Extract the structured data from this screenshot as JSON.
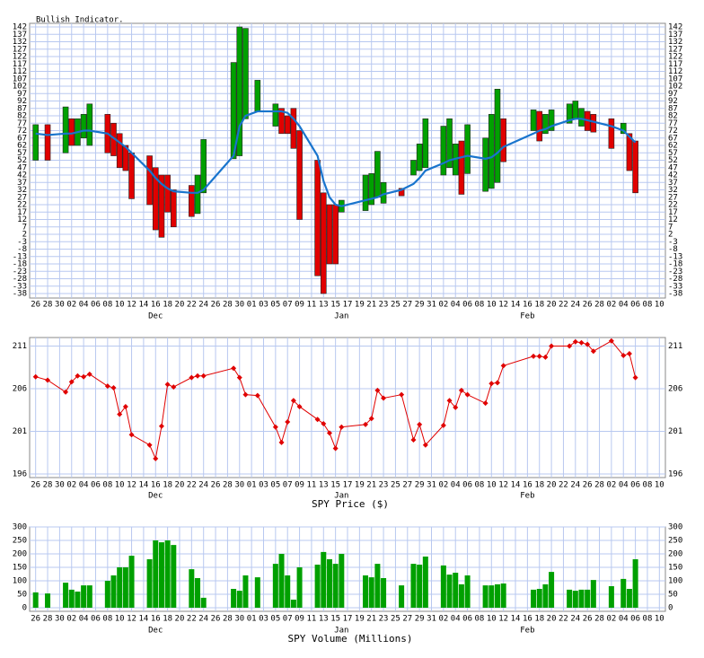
{
  "chart_data": [
    {
      "type": "range",
      "title": "Bullish Indicator.",
      "x": [
        0,
        2,
        5,
        6,
        7,
        8,
        9,
        12,
        13,
        14,
        15,
        16,
        19,
        20,
        21,
        22,
        23,
        26,
        27,
        28,
        33,
        34,
        35,
        37,
        40,
        41,
        42,
        43,
        44,
        47,
        48,
        49,
        50,
        51,
        55,
        56,
        57,
        58,
        61,
        63,
        64,
        65,
        68,
        69,
        70,
        71,
        72,
        75,
        76,
        77,
        78,
        83,
        84,
        85,
        86,
        89,
        90,
        91,
        92,
        93,
        96,
        98,
        99,
        100
      ],
      "open": [
        52,
        76,
        57,
        80,
        62,
        67,
        62,
        83,
        77,
        70,
        62,
        57,
        55,
        47,
        42,
        42,
        32,
        35,
        16,
        30,
        53,
        55,
        80,
        85,
        75,
        87,
        82,
        87,
        72,
        52,
        30,
        22,
        22,
        17,
        18,
        22,
        27,
        23,
        33,
        42,
        45,
        47,
        42,
        47,
        42,
        65,
        43,
        31,
        33,
        37,
        80,
        72,
        85,
        70,
        72,
        77,
        80,
        75,
        85,
        83,
        80,
        70,
        70,
        65
      ],
      "close": [
        76,
        52,
        88,
        62,
        80,
        83,
        90,
        57,
        55,
        47,
        45,
        26,
        22,
        5,
        0,
        17,
        7,
        14,
        42,
        66,
        118,
        142,
        141,
        106,
        90,
        70,
        70,
        60,
        12,
        -26,
        -38,
        -18,
        -18,
        25,
        42,
        43,
        58,
        37,
        28,
        52,
        63,
        80,
        75,
        80,
        63,
        29,
        76,
        67,
        83,
        100,
        51,
        86,
        65,
        83,
        86,
        90,
        92,
        87,
        72,
        71,
        60,
        77,
        45,
        30
      ],
      "up_color": "#00a000",
      "down_color": "#e00000",
      "line_color": "#1874cd",
      "line_values": [
        70,
        69,
        70,
        70,
        71,
        72,
        72,
        70,
        67,
        64,
        61,
        57,
        45,
        40,
        36,
        33,
        31,
        30,
        30,
        32,
        55,
        75,
        82,
        85,
        85,
        85,
        84,
        80,
        75,
        55,
        38,
        27,
        22,
        21,
        25,
        26,
        27,
        29,
        32,
        36,
        40,
        45,
        50,
        52,
        53,
        54,
        55,
        53,
        54,
        57,
        61,
        70,
        72,
        73,
        75,
        79,
        80,
        80,
        79,
        78,
        75,
        72,
        68,
        64
      ],
      "xlim": [
        -1,
        105
      ],
      "xticks": [
        {
          "value": 0,
          "label": "26"
        },
        {
          "value": 2,
          "label": "28"
        },
        {
          "value": 4,
          "label": "30"
        },
        {
          "value": 6,
          "label": "02"
        },
        {
          "value": 8,
          "label": "04"
        },
        {
          "value": 10,
          "label": "06"
        },
        {
          "value": 12,
          "label": "08"
        },
        {
          "value": 14,
          "label": "10"
        },
        {
          "value": 16,
          "label": "12"
        },
        {
          "value": 18,
          "label": "14"
        },
        {
          "value": 20,
          "label": "16"
        },
        {
          "value": 22,
          "label": "18"
        },
        {
          "value": 24,
          "label": "20"
        },
        {
          "value": 26,
          "label": "22"
        },
        {
          "value": 28,
          "label": "24"
        },
        {
          "value": 30,
          "label": "26"
        },
        {
          "value": 32,
          "label": "28"
        },
        {
          "value": 34,
          "label": "30"
        },
        {
          "value": 36,
          "label": "01"
        },
        {
          "value": 38,
          "label": "03"
        },
        {
          "value": 40,
          "label": "05"
        },
        {
          "value": 42,
          "label": "07"
        },
        {
          "value": 44,
          "label": "09"
        },
        {
          "value": 46,
          "label": "11"
        },
        {
          "value": 48,
          "label": "13"
        },
        {
          "value": 50,
          "label": "15"
        },
        {
          "value": 52,
          "label": "17"
        },
        {
          "value": 54,
          "label": "19"
        },
        {
          "value": 56,
          "label": "21"
        },
        {
          "value": 58,
          "label": "23"
        },
        {
          "value": 60,
          "label": "25"
        },
        {
          "value": 62,
          "label": "27"
        },
        {
          "value": 64,
          "label": "29"
        },
        {
          "value": 66,
          "label": "31"
        },
        {
          "value": 68,
          "label": "02"
        },
        {
          "value": 70,
          "label": "04"
        },
        {
          "value": 72,
          "label": "06"
        },
        {
          "value": 74,
          "label": "08"
        },
        {
          "value": 76,
          "label": "10"
        },
        {
          "value": 78,
          "label": "12"
        },
        {
          "value": 80,
          "label": "14"
        },
        {
          "value": 82,
          "label": "16"
        },
        {
          "value": 84,
          "label": "18"
        },
        {
          "value": 86,
          "label": "20"
        },
        {
          "value": 88,
          "label": "22"
        },
        {
          "value": 90,
          "label": "24"
        },
        {
          "value": 92,
          "label": "26"
        },
        {
          "value": 94,
          "label": "28"
        },
        {
          "value": 96,
          "label": "02"
        },
        {
          "value": 98,
          "label": "04"
        },
        {
          "value": 100,
          "label": "06"
        },
        {
          "value": 102,
          "label": "08"
        },
        {
          "value": 104,
          "label": "10"
        }
      ],
      "months": [
        {
          "value": 20,
          "label": "Dec"
        },
        {
          "value": 51,
          "label": "Jan"
        },
        {
          "value": 82,
          "label": "Feb"
        }
      ],
      "ylim": [
        -38,
        142
      ],
      "yticks": [
        -38,
        -33,
        -28,
        -23,
        -18,
        -13,
        -8,
        -3,
        2,
        7,
        12,
        17,
        22,
        27,
        32,
        37,
        42,
        47,
        52,
        57,
        62,
        67,
        72,
        77,
        82,
        87,
        92,
        97,
        102,
        107,
        112,
        117,
        122,
        127,
        132,
        137,
        142
      ],
      "grid": true
    },
    {
      "type": "line",
      "xlabel": "SPY Price ($)",
      "color": "#e00000",
      "x": [
        0,
        2,
        5,
        6,
        7,
        8,
        9,
        12,
        13,
        14,
        15,
        16,
        19,
        20,
        21,
        22,
        23,
        26,
        27,
        28,
        33,
        34,
        35,
        37,
        40,
        41,
        42,
        43,
        44,
        47,
        48,
        49,
        50,
        51,
        55,
        56,
        57,
        58,
        61,
        63,
        64,
        65,
        68,
        69,
        70,
        71,
        72,
        75,
        76,
        77,
        78,
        83,
        84,
        85,
        86,
        89,
        90,
        91,
        92,
        93,
        96,
        98,
        99,
        100
      ],
      "values": [
        207.4,
        207.0,
        205.6,
        206.8,
        207.5,
        207.4,
        207.7,
        206.3,
        206.1,
        203.0,
        203.9,
        200.6,
        199.4,
        197.8,
        201.6,
        206.5,
        206.2,
        207.3,
        207.5,
        207.5,
        208.4,
        207.3,
        205.3,
        205.2,
        201.5,
        199.7,
        202.1,
        204.6,
        203.9,
        202.4,
        201.9,
        200.8,
        199.0,
        201.5,
        201.8,
        202.5,
        205.8,
        204.9,
        205.3,
        200.0,
        201.8,
        199.4,
        201.7,
        204.6,
        203.8,
        205.8,
        205.3,
        204.3,
        206.6,
        206.7,
        208.7,
        209.8,
        209.8,
        209.7,
        211.0,
        211.0,
        211.5,
        211.4,
        211.2,
        210.4,
        211.6,
        209.9,
        210.1,
        207.3
      ],
      "xlim": [
        -1,
        105
      ],
      "xticks": [
        {
          "value": 0,
          "label": "26"
        },
        {
          "value": 2,
          "label": "28"
        },
        {
          "value": 4,
          "label": "30"
        },
        {
          "value": 6,
          "label": "02"
        },
        {
          "value": 8,
          "label": "04"
        },
        {
          "value": 10,
          "label": "06"
        },
        {
          "value": 12,
          "label": "08"
        },
        {
          "value": 14,
          "label": "10"
        },
        {
          "value": 16,
          "label": "12"
        },
        {
          "value": 18,
          "label": "14"
        },
        {
          "value": 20,
          "label": "16"
        },
        {
          "value": 22,
          "label": "18"
        },
        {
          "value": 24,
          "label": "20"
        },
        {
          "value": 26,
          "label": "22"
        },
        {
          "value": 28,
          "label": "24"
        },
        {
          "value": 30,
          "label": "26"
        },
        {
          "value": 32,
          "label": "28"
        },
        {
          "value": 34,
          "label": "30"
        },
        {
          "value": 36,
          "label": "01"
        },
        {
          "value": 38,
          "label": "03"
        },
        {
          "value": 40,
          "label": "05"
        },
        {
          "value": 42,
          "label": "07"
        },
        {
          "value": 44,
          "label": "09"
        },
        {
          "value": 46,
          "label": "11"
        },
        {
          "value": 48,
          "label": "13"
        },
        {
          "value": 50,
          "label": "15"
        },
        {
          "value": 52,
          "label": "17"
        },
        {
          "value": 54,
          "label": "19"
        },
        {
          "value": 56,
          "label": "21"
        },
        {
          "value": 58,
          "label": "23"
        },
        {
          "value": 60,
          "label": "25"
        },
        {
          "value": 62,
          "label": "27"
        },
        {
          "value": 64,
          "label": "29"
        },
        {
          "value": 66,
          "label": "31"
        },
        {
          "value": 68,
          "label": "02"
        },
        {
          "value": 70,
          "label": "04"
        },
        {
          "value": 72,
          "label": "06"
        },
        {
          "value": 74,
          "label": "08"
        },
        {
          "value": 76,
          "label": "10"
        },
        {
          "value": 78,
          "label": "12"
        },
        {
          "value": 80,
          "label": "14"
        },
        {
          "value": 82,
          "label": "16"
        },
        {
          "value": 84,
          "label": "18"
        },
        {
          "value": 86,
          "label": "20"
        },
        {
          "value": 88,
          "label": "22"
        },
        {
          "value": 90,
          "label": "24"
        },
        {
          "value": 92,
          "label": "26"
        },
        {
          "value": 94,
          "label": "28"
        },
        {
          "value": 96,
          "label": "02"
        },
        {
          "value": 98,
          "label": "04"
        },
        {
          "value": 100,
          "label": "06"
        },
        {
          "value": 102,
          "label": "08"
        },
        {
          "value": 104,
          "label": "10"
        }
      ],
      "months": [
        {
          "value": 20,
          "label": "Dec"
        },
        {
          "value": 51,
          "label": "Jan"
        },
        {
          "value": 82,
          "label": "Feb"
        }
      ],
      "ylim": [
        196,
        212
      ],
      "yticks": [
        196,
        201,
        206,
        211
      ],
      "grid": true
    },
    {
      "type": "bar",
      "xlabel": "SPY Volume (Millions)",
      "color": "#00a000",
      "x": [
        0,
        2,
        5,
        6,
        7,
        8,
        9,
        12,
        13,
        14,
        15,
        16,
        19,
        20,
        21,
        22,
        23,
        26,
        27,
        28,
        33,
        34,
        35,
        37,
        40,
        41,
        42,
        43,
        44,
        47,
        48,
        49,
        50,
        51,
        55,
        56,
        57,
        58,
        61,
        63,
        64,
        65,
        68,
        69,
        70,
        71,
        72,
        75,
        76,
        77,
        78,
        83,
        84,
        85,
        86,
        89,
        90,
        91,
        92,
        93,
        96,
        98,
        99,
        100
      ],
      "values": [
        57,
        53,
        93,
        67,
        60,
        83,
        83,
        100,
        120,
        150,
        150,
        193,
        180,
        250,
        243,
        250,
        233,
        143,
        110,
        37,
        70,
        63,
        120,
        113,
        163,
        200,
        120,
        30,
        150,
        160,
        207,
        180,
        163,
        200,
        120,
        113,
        163,
        110,
        83,
        163,
        160,
        190,
        157,
        123,
        130,
        87,
        120,
        83,
        83,
        87,
        90,
        67,
        70,
        87,
        133,
        67,
        63,
        67,
        67,
        103,
        80,
        107,
        70,
        180
      ],
      "xlim": [
        -1,
        105
      ],
      "xticks": [
        {
          "value": 0,
          "label": "26"
        },
        {
          "value": 2,
          "label": "28"
        },
        {
          "value": 4,
          "label": "30"
        },
        {
          "value": 6,
          "label": "02"
        },
        {
          "value": 8,
          "label": "04"
        },
        {
          "value": 10,
          "label": "06"
        },
        {
          "value": 12,
          "label": "08"
        },
        {
          "value": 14,
          "label": "10"
        },
        {
          "value": 16,
          "label": "12"
        },
        {
          "value": 18,
          "label": "14"
        },
        {
          "value": 20,
          "label": "16"
        },
        {
          "value": 22,
          "label": "18"
        },
        {
          "value": 24,
          "label": "20"
        },
        {
          "value": 26,
          "label": "22"
        },
        {
          "value": 28,
          "label": "24"
        },
        {
          "value": 30,
          "label": "26"
        },
        {
          "value": 32,
          "label": "28"
        },
        {
          "value": 34,
          "label": "30"
        },
        {
          "value": 36,
          "label": "01"
        },
        {
          "value": 38,
          "label": "03"
        },
        {
          "value": 40,
          "label": "05"
        },
        {
          "value": 42,
          "label": "07"
        },
        {
          "value": 44,
          "label": "09"
        },
        {
          "value": 46,
          "label": "11"
        },
        {
          "value": 48,
          "label": "13"
        },
        {
          "value": 50,
          "label": "15"
        },
        {
          "value": 52,
          "label": "17"
        },
        {
          "value": 54,
          "label": "19"
        },
        {
          "value": 56,
          "label": "21"
        },
        {
          "value": 58,
          "label": "23"
        },
        {
          "value": 60,
          "label": "25"
        },
        {
          "value": 62,
          "label": "27"
        },
        {
          "value": 64,
          "label": "29"
        },
        {
          "value": 66,
          "label": "31"
        },
        {
          "value": 68,
          "label": "02"
        },
        {
          "value": 70,
          "label": "04"
        },
        {
          "value": 72,
          "label": "06"
        },
        {
          "value": 74,
          "label": "08"
        },
        {
          "value": 76,
          "label": "10"
        },
        {
          "value": 78,
          "label": "12"
        },
        {
          "value": 80,
          "label": "14"
        },
        {
          "value": 82,
          "label": "16"
        },
        {
          "value": 84,
          "label": "18"
        },
        {
          "value": 86,
          "label": "20"
        },
        {
          "value": 88,
          "label": "22"
        },
        {
          "value": 90,
          "label": "24"
        },
        {
          "value": 92,
          "label": "26"
        },
        {
          "value": 94,
          "label": "28"
        },
        {
          "value": 96,
          "label": "02"
        },
        {
          "value": 98,
          "label": "04"
        },
        {
          "value": 100,
          "label": "06"
        },
        {
          "value": 102,
          "label": "08"
        },
        {
          "value": 104,
          "label": "10"
        }
      ],
      "months": [
        {
          "value": 20,
          "label": "Dec"
        },
        {
          "value": 51,
          "label": "Jan"
        },
        {
          "value": 82,
          "label": "Feb"
        }
      ],
      "ylim": [
        0,
        300
      ],
      "yticks": [
        0,
        50,
        100,
        150,
        200,
        250,
        300
      ],
      "grid": true
    }
  ]
}
